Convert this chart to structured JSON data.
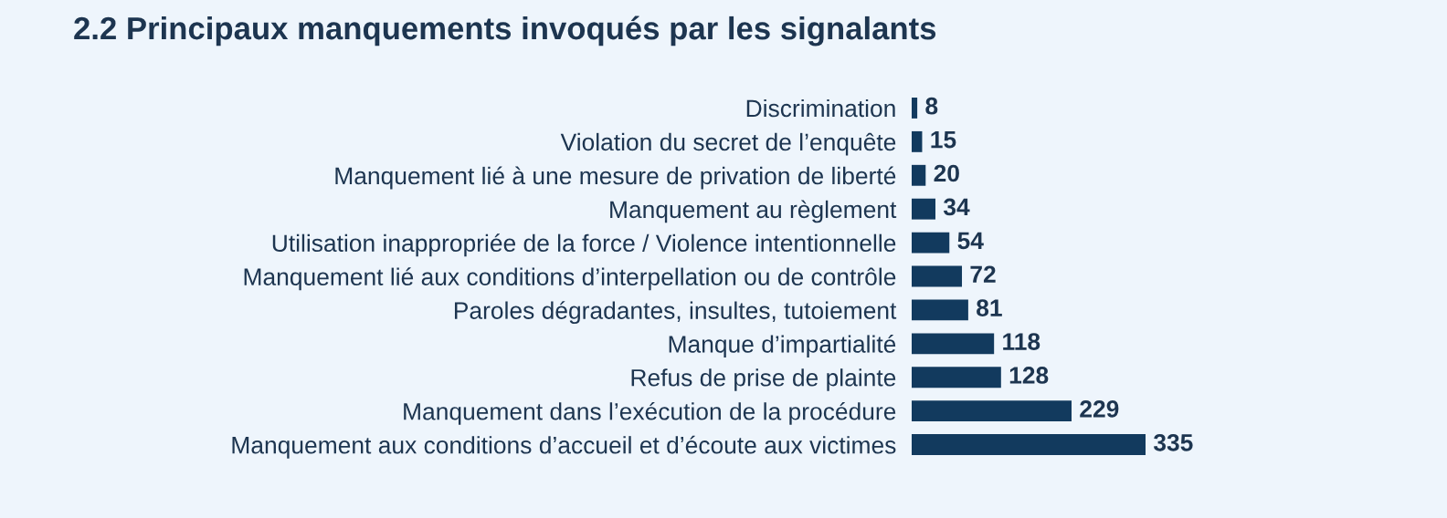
{
  "chart_data": {
    "type": "bar",
    "orientation": "horizontal",
    "title": "2.2 Principaux manquements invoqués par les signalants",
    "categories": [
      "Discrimination",
      "Violation du secret de l’enquête",
      "Manquement lié à une mesure de privation de liberté",
      "Manquement au règlement",
      "Utilisation inappropriée de la force / Violence intentionnelle",
      "Manquement lié aux conditions d’interpellation ou de contrôle",
      "Paroles dégradantes, insultes, tutoiement",
      "Manque d’impartialité",
      "Refus de prise de plainte",
      "Manquement dans l’exécution de la procédure",
      "Manquement aux conditions d’accueil et d’écoute aux victimes"
    ],
    "values": [
      8,
      15,
      20,
      34,
      54,
      72,
      81,
      118,
      128,
      229,
      335
    ],
    "color": "#123a5e",
    "data_labels": true
  }
}
